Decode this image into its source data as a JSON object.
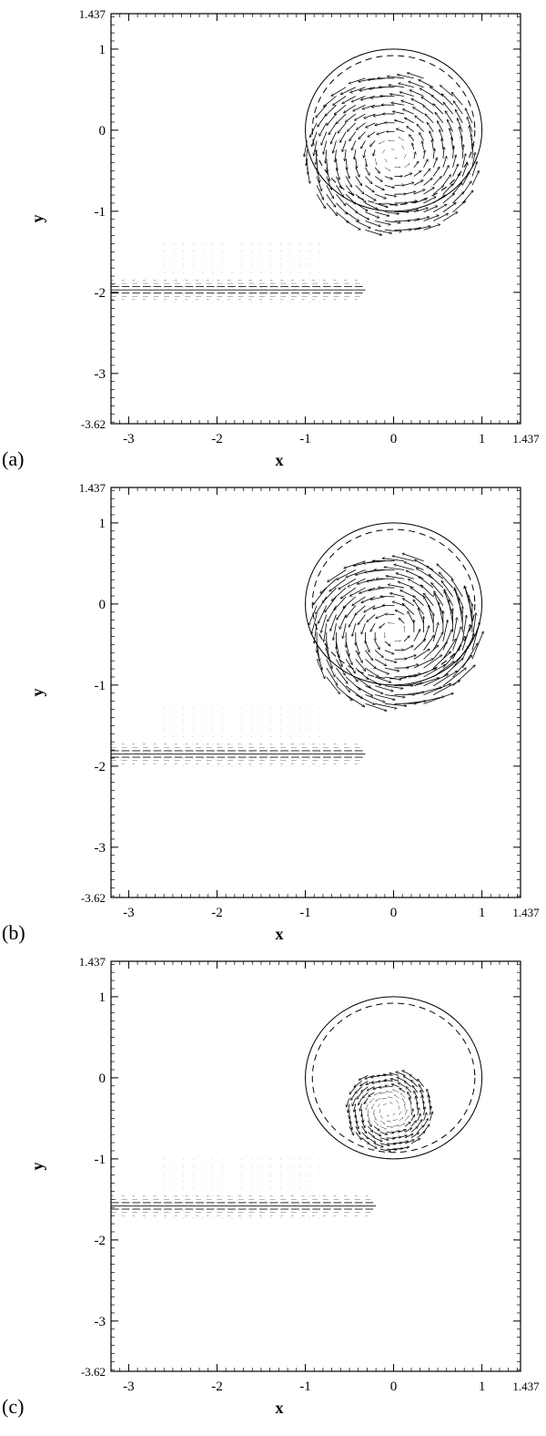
{
  "chart_data": [
    {
      "type": "quiver",
      "panel_label": "(a)",
      "xlabel": "x",
      "ylabel": "y",
      "xlim": [
        -3.2,
        1.437
      ],
      "ylim": [
        -3.62,
        1.437
      ],
      "x_ticks": [
        "-3",
        "-2",
        "-1",
        "0",
        "1",
        "1.437"
      ],
      "y_ticks": [
        "1.437",
        "1",
        "0",
        "-1",
        "-2",
        "-3",
        "-3.62"
      ],
      "circles": [
        {
          "style": "solid",
          "cx": 0,
          "cy": 0,
          "r": 1.0
        },
        {
          "style": "dashed",
          "cx": 0,
          "cy": 0,
          "r": 0.92
        }
      ],
      "vortex": {
        "center": [
          0,
          -0.3
        ],
        "radius": 1.0,
        "strength": "medium"
      },
      "tail": {
        "y": -1.97,
        "x_start": -3.2,
        "x_end": -0.4
      }
    },
    {
      "type": "quiver",
      "panel_label": "(b)",
      "xlabel": "x",
      "ylabel": "y",
      "xlim": [
        -3.2,
        1.437
      ],
      "ylim": [
        -3.62,
        1.437
      ],
      "x_ticks": [
        "-3",
        "-2",
        "-1",
        "0",
        "1",
        "1.437"
      ],
      "y_ticks": [
        "1.437",
        "1",
        "0",
        "-1",
        "-2",
        "-3",
        "-3.62"
      ],
      "circles": [
        {
          "style": "solid",
          "cx": 0,
          "cy": 0,
          "r": 1.0
        },
        {
          "style": "dashed",
          "cx": 0,
          "cy": 0,
          "r": 0.92
        }
      ],
      "vortex": {
        "center": [
          0,
          -0.35
        ],
        "radius": 0.95,
        "strength": "strong"
      },
      "tail": {
        "y": -1.85,
        "x_start": -3.2,
        "x_end": -0.4
      }
    },
    {
      "type": "quiver",
      "panel_label": "(c)",
      "xlabel": "x",
      "ylabel": "y",
      "xlim": [
        -3.2,
        1.437
      ],
      "ylim": [
        -3.62,
        1.437
      ],
      "x_ticks": [
        "-3",
        "-2",
        "-1",
        "0",
        "1",
        "1.437"
      ],
      "y_ticks": [
        "1.437",
        "1",
        "0",
        "-1",
        "-2",
        "-3",
        "-3.62"
      ],
      "circles": [
        {
          "style": "solid",
          "cx": 0,
          "cy": 0,
          "r": 1.0
        },
        {
          "style": "dashed",
          "cx": 0,
          "cy": 0,
          "r": 0.92
        }
      ],
      "vortex": {
        "center": [
          -0.05,
          -0.4
        ],
        "radius": 0.5,
        "strength": "small"
      },
      "tail": {
        "y": -1.58,
        "x_start": -3.2,
        "x_end": -0.3
      }
    }
  ]
}
